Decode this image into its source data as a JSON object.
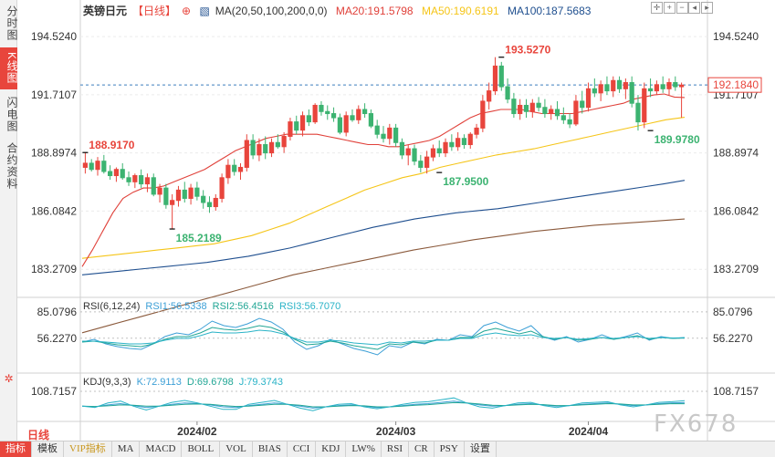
{
  "side_tabs": [
    "分时图",
    "K线图",
    "闪电图",
    "合约资料"
  ],
  "side_bottom_icon": "settings-gear-icon",
  "legend": {
    "title": "英镑日元",
    "period": "【日线】",
    "ma_label": "MA(20,50,100,200,0,0)",
    "ma20": "MA20:191.5798",
    "ma50": "MA50:190.6191",
    "ma100": "MA100:187.5683"
  },
  "rsi_legend": {
    "name": "RSI(6,12,24)",
    "rsi1": "RSI1:56.5338",
    "rsi2": "RSI2:56.4516",
    "rsi3": "RSI3:56.7070"
  },
  "kdj_legend": {
    "name": "KDJ(9,3,3)",
    "k": "K:72.9113",
    "d": "D:69.6798",
    "j": "J:79.3743"
  },
  "bottom_tabs": [
    "指标",
    "模板",
    "VIP指标",
    "MA",
    "MACD",
    "BOLL",
    "VOL",
    "BIAS",
    "CCI",
    "KDJ",
    "LW%",
    "RSI",
    "CR",
    "PSY",
    "设置"
  ],
  "period_label": "日线",
  "watermark": "FX678",
  "colors": {
    "up": "#e8453c",
    "down": "#3cb371",
    "ma20": "#e0413a",
    "ma50": "#f5c518",
    "ma100": "#1f4f8f",
    "ma200": "#8b5a3c"
  },
  "chart_data": {
    "type": "candlestick",
    "title": "英镑日元",
    "price_axis": {
      "ticks": [
        "194.5240",
        "191.7107",
        "188.8974",
        "186.0842",
        "183.2709"
      ],
      "range": [
        182.0,
        195.5
      ]
    },
    "current_price": "192.1840",
    "annotations": [
      {
        "label": "188.9170",
        "value": 188.917,
        "index": 0,
        "kind": "high"
      },
      {
        "label": "185.2189",
        "value": 185.2189,
        "index": 14,
        "kind": "low"
      },
      {
        "label": "187.9500",
        "value": 187.95,
        "index": 57,
        "kind": "low"
      },
      {
        "label": "193.5270",
        "value": 193.527,
        "index": 67,
        "kind": "high"
      },
      {
        "label": "189.9780",
        "value": 189.978,
        "index": 91,
        "kind": "low"
      }
    ],
    "x_labels": [
      {
        "label": "2024/02",
        "index": 18
      },
      {
        "label": "2024/03",
        "index": 50
      },
      {
        "label": "2024/04",
        "index": 81
      }
    ],
    "ohlc": [
      [
        188.2,
        188.9,
        187.9,
        188.4
      ],
      [
        188.4,
        188.6,
        188.0,
        188.1
      ],
      [
        188.1,
        188.7,
        187.8,
        188.5
      ],
      [
        188.5,
        188.8,
        187.9,
        188.0
      ],
      [
        188.0,
        188.3,
        187.6,
        187.8
      ],
      [
        187.8,
        188.2,
        187.5,
        188.1
      ],
      [
        188.1,
        188.4,
        187.6,
        187.7
      ],
      [
        187.7,
        188.0,
        187.3,
        187.5
      ],
      [
        187.5,
        187.9,
        187.2,
        187.8
      ],
      [
        187.8,
        188.1,
        187.2,
        187.4
      ],
      [
        187.4,
        187.9,
        187.0,
        187.7
      ],
      [
        187.7,
        187.9,
        186.8,
        186.9
      ],
      [
        186.9,
        187.4,
        186.5,
        187.2
      ],
      [
        187.2,
        187.4,
        186.2,
        186.4
      ],
      [
        186.4,
        186.9,
        185.22,
        186.6
      ],
      [
        186.6,
        187.3,
        186.3,
        187.1
      ],
      [
        187.1,
        187.5,
        186.5,
        186.7
      ],
      [
        186.7,
        187.4,
        186.4,
        187.2
      ],
      [
        187.2,
        187.5,
        186.6,
        186.8
      ],
      [
        186.8,
        187.1,
        186.2,
        186.5
      ],
      [
        186.5,
        186.8,
        186.0,
        186.3
      ],
      [
        186.3,
        186.9,
        186.1,
        186.7
      ],
      [
        186.7,
        187.9,
        186.5,
        187.7
      ],
      [
        187.7,
        188.6,
        187.4,
        188.3
      ],
      [
        188.3,
        188.6,
        187.8,
        188.0
      ],
      [
        188.0,
        188.4,
        187.6,
        188.2
      ],
      [
        188.2,
        189.8,
        188.0,
        189.5
      ],
      [
        189.5,
        189.8,
        188.6,
        188.8
      ],
      [
        188.8,
        189.6,
        188.5,
        189.3
      ],
      [
        189.3,
        189.7,
        188.6,
        188.9
      ],
      [
        188.9,
        189.6,
        188.7,
        189.4
      ],
      [
        189.4,
        189.8,
        189.1,
        189.2
      ],
      [
        189.2,
        189.9,
        188.9,
        189.7
      ],
      [
        189.7,
        190.6,
        189.5,
        190.4
      ],
      [
        190.4,
        190.7,
        189.8,
        190.0
      ],
      [
        190.0,
        190.9,
        189.7,
        190.7
      ],
      [
        190.7,
        191.0,
        190.2,
        190.4
      ],
      [
        190.4,
        191.3,
        190.3,
        191.2
      ],
      [
        191.2,
        191.4,
        190.7,
        190.9
      ],
      [
        190.9,
        191.2,
        190.5,
        190.8
      ],
      [
        190.8,
        191.1,
        190.4,
        190.6
      ],
      [
        190.6,
        190.8,
        189.8,
        189.9
      ],
      [
        189.9,
        190.9,
        189.7,
        190.7
      ],
      [
        190.7,
        191.0,
        190.4,
        190.5
      ],
      [
        190.5,
        191.2,
        190.3,
        191.0
      ],
      [
        191.0,
        191.3,
        190.6,
        190.8
      ],
      [
        190.8,
        191.0,
        190.1,
        190.2
      ],
      [
        190.2,
        190.5,
        189.6,
        189.8
      ],
      [
        189.8,
        190.2,
        189.4,
        189.6
      ],
      [
        189.6,
        190.3,
        189.3,
        190.1
      ],
      [
        190.1,
        190.3,
        189.2,
        189.4
      ],
      [
        189.4,
        189.6,
        188.6,
        188.8
      ],
      [
        188.8,
        189.3,
        188.3,
        189.1
      ],
      [
        189.1,
        189.3,
        188.3,
        188.5
      ],
      [
        188.5,
        188.8,
        187.95,
        188.2
      ],
      [
        188.2,
        189.0,
        187.9,
        188.7
      ],
      [
        188.7,
        189.3,
        188.5,
        189.1
      ],
      [
        189.1,
        189.5,
        188.7,
        188.9
      ],
      [
        188.9,
        189.6,
        188.7,
        189.4
      ],
      [
        189.4,
        189.8,
        189.0,
        189.2
      ],
      [
        189.2,
        189.9,
        189.0,
        189.6
      ],
      [
        189.6,
        189.8,
        189.1,
        189.3
      ],
      [
        189.3,
        189.9,
        189.1,
        189.8
      ],
      [
        189.8,
        190.3,
        189.6,
        190.1
      ],
      [
        190.1,
        191.7,
        189.9,
        191.4
      ],
      [
        191.4,
        192.3,
        191.0,
        191.9
      ],
      [
        191.9,
        193.53,
        191.7,
        193.1
      ],
      [
        193.1,
        193.3,
        191.9,
        192.1
      ],
      [
        192.1,
        192.5,
        191.3,
        191.5
      ],
      [
        191.5,
        191.8,
        190.6,
        190.8
      ],
      [
        190.8,
        191.5,
        190.5,
        191.2
      ],
      [
        191.2,
        191.5,
        190.6,
        190.9
      ],
      [
        190.9,
        191.5,
        190.6,
        191.3
      ],
      [
        191.3,
        191.6,
        190.9,
        191.1
      ],
      [
        191.1,
        191.5,
        190.6,
        190.8
      ],
      [
        190.8,
        191.2,
        190.5,
        191.0
      ],
      [
        191.0,
        191.4,
        190.5,
        190.7
      ],
      [
        190.7,
        191.1,
        190.3,
        190.5
      ],
      [
        190.5,
        190.8,
        190.1,
        190.3
      ],
      [
        190.3,
        191.7,
        190.2,
        191.4
      ],
      [
        191.4,
        191.9,
        190.8,
        191.1
      ],
      [
        191.1,
        192.3,
        190.9,
        192.0
      ],
      [
        192.0,
        192.5,
        191.6,
        191.8
      ],
      [
        191.8,
        192.4,
        191.4,
        192.2
      ],
      [
        192.2,
        192.6,
        191.7,
        191.9
      ],
      [
        191.9,
        192.6,
        191.6,
        192.4
      ],
      [
        192.4,
        192.6,
        191.8,
        192.0
      ],
      [
        192.0,
        192.5,
        191.5,
        192.3
      ],
      [
        192.3,
        192.6,
        191.1,
        191.3
      ],
      [
        191.3,
        191.7,
        189.98,
        190.4
      ],
      [
        190.4,
        192.3,
        190.1,
        192.0
      ],
      [
        192.0,
        192.5,
        191.6,
        191.9
      ],
      [
        191.9,
        192.4,
        191.7,
        192.2
      ],
      [
        192.2,
        192.6,
        191.8,
        192.0
      ],
      [
        192.0,
        192.5,
        191.7,
        192.3
      ],
      [
        192.3,
        192.6,
        191.9,
        192.1
      ],
      [
        192.1,
        192.3,
        190.6,
        192.18
      ]
    ],
    "ma20": {
      "start": 0,
      "values": [
        183.4,
        184.2,
        185.1,
        186.0,
        186.7,
        187.0,
        187.2,
        187.2,
        187.3,
        187.5,
        187.7,
        187.9,
        188.1,
        188.4,
        188.7,
        189.0,
        189.2,
        189.4,
        189.6,
        189.7,
        189.8,
        189.8,
        189.8,
        189.8,
        189.7,
        189.6,
        189.5,
        189.4,
        189.3,
        189.3,
        189.2,
        189.2,
        189.3,
        189.4,
        189.5,
        189.7,
        190.0,
        190.3,
        190.6,
        190.8,
        190.9,
        191.0,
        191.0,
        191.0,
        190.9,
        190.8,
        190.8,
        190.8,
        190.8,
        190.9,
        191.0,
        191.1,
        191.2,
        191.3,
        191.5,
        191.6,
        191.7,
        191.75,
        191.6,
        191.58
      ]
    },
    "ma50": {
      "start": 0,
      "values": [
        183.8,
        183.9,
        184.0,
        184.1,
        184.2,
        184.3,
        184.4,
        184.5,
        184.7,
        184.9,
        185.2,
        185.5,
        185.9,
        186.3,
        186.7,
        187.1,
        187.4,
        187.7,
        187.9,
        188.2,
        188.4,
        188.6,
        188.8,
        188.95,
        189.1,
        189.3,
        189.5,
        189.7,
        189.9,
        190.1,
        190.3,
        190.5,
        190.62
      ]
    },
    "ma100": {
      "start": 0,
      "values": [
        183.0,
        183.1,
        183.2,
        183.3,
        183.4,
        183.5,
        183.6,
        183.75,
        183.9,
        184.1,
        184.3,
        184.55,
        184.8,
        185.05,
        185.3,
        185.5,
        185.7,
        185.85,
        186.0,
        186.1,
        186.2,
        186.35,
        186.5,
        186.65,
        186.8,
        186.95,
        187.1,
        187.25,
        187.4,
        187.57
      ]
    },
    "ma200": {
      "start": 0,
      "values": [
        180.2,
        180.6,
        181.0,
        181.4,
        181.8,
        182.2,
        182.6,
        183.0,
        183.3,
        183.6,
        183.9,
        184.2,
        184.45,
        184.7,
        184.9,
        185.1,
        185.25,
        185.4,
        185.5,
        185.6,
        185.7
      ]
    },
    "rsi": {
      "ticks": [
        "85.0796",
        "56.2270"
      ],
      "rsi1": [
        52,
        55,
        50,
        47,
        45,
        44,
        50,
        58,
        62,
        60,
        66,
        75,
        70,
        68,
        72,
        78,
        74,
        66,
        52,
        44,
        48,
        55,
        50,
        45,
        42,
        38,
        48,
        46,
        52,
        50,
        55,
        54,
        60,
        58,
        70,
        74,
        68,
        64,
        70,
        58,
        54,
        58,
        52,
        55,
        60,
        55,
        58,
        62,
        54,
        58,
        56,
        57
      ],
      "rsi2": [
        52,
        53,
        51,
        49,
        48,
        47,
        50,
        55,
        58,
        58,
        62,
        68,
        66,
        65,
        67,
        70,
        68,
        63,
        55,
        49,
        50,
        53,
        51,
        48,
        46,
        44,
        50,
        49,
        52,
        51,
        54,
        54,
        57,
        57,
        64,
        67,
        64,
        61,
        64,
        58,
        55,
        57,
        54,
        55,
        57,
        55,
        57,
        59,
        55,
        57,
        56,
        56.4
      ],
      "rsi3": [
        53,
        53,
        52,
        51,
        50,
        50,
        51,
        54,
        56,
        56,
        59,
        63,
        62,
        62,
        63,
        65,
        64,
        61,
        56,
        52,
        52,
        54,
        53,
        51,
        50,
        49,
        52,
        51,
        53,
        53,
        54,
        54,
        56,
        56,
        60,
        62,
        60,
        59,
        60,
        57,
        56,
        57,
        55,
        56,
        57,
        56,
        57,
        58,
        56,
        57,
        56.5,
        56.7
      ]
    },
    "kdj": {
      "ticks": [
        "108.7157"
      ],
      "k": [
        62,
        60,
        66,
        70,
        64,
        58,
        62,
        68,
        72,
        70,
        66,
        60,
        58,
        64,
        68,
        72,
        68,
        62,
        56,
        60,
        64,
        66,
        62,
        58,
        60,
        64,
        68,
        70,
        74,
        78,
        72,
        66,
        62,
        64,
        68,
        70,
        66,
        62,
        64,
        68,
        70,
        72,
        68,
        64,
        66,
        70,
        72,
        73
      ],
      "d": [
        62,
        61,
        63,
        66,
        65,
        62,
        62,
        65,
        68,
        69,
        68,
        64,
        61,
        62,
        65,
        68,
        68,
        65,
        60,
        60,
        62,
        64,
        63,
        60,
        60,
        62,
        65,
        67,
        70,
        73,
        72,
        69,
        65,
        64,
        66,
        68,
        67,
        64,
        64,
        66,
        68,
        70,
        69,
        66,
        66,
        68,
        70,
        69.7
      ],
      "j": [
        62,
        58,
        72,
        78,
        62,
        50,
        62,
        74,
        80,
        72,
        62,
        52,
        52,
        68,
        74,
        80,
        68,
        56,
        48,
        60,
        68,
        70,
        60,
        54,
        60,
        68,
        74,
        76,
        82,
        88,
        72,
        60,
        56,
        64,
        72,
        74,
        64,
        58,
        64,
        72,
        74,
        76,
        66,
        60,
        66,
        74,
        76,
        79.4
      ]
    }
  }
}
